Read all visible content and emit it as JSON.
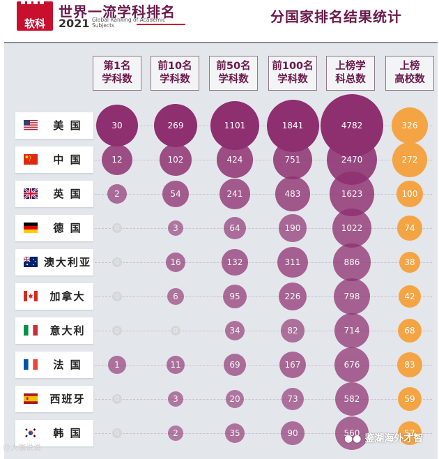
{
  "header": {
    "logo_text": "软科",
    "title": "世界一流学科排名",
    "year": "2021",
    "subtitle": "Global Ranking of Academic Subjects",
    "right_title": "分国家排名结果统计"
  },
  "colors": {
    "purple": "#8e2f70",
    "orange": "#f5a444",
    "zero": "#d4d6da",
    "header_text": "#6b1a4c"
  },
  "chart_data": {
    "type": "table",
    "columns": [
      "第1名\n学科数",
      "前10名\n学科数",
      "前50名\n学科数",
      "前100名\n学科数",
      "上榜学\n科总数",
      "上榜\n高校数"
    ],
    "rows": [
      {
        "country": "美 国",
        "flag": "us",
        "values": [
          30,
          269,
          1101,
          1841,
          4782,
          326
        ]
      },
      {
        "country": "中 国",
        "flag": "cn",
        "values": [
          12,
          102,
          424,
          751,
          2470,
          272
        ]
      },
      {
        "country": "英 国",
        "flag": "uk",
        "values": [
          2,
          54,
          241,
          483,
          1623,
          100
        ]
      },
      {
        "country": "德 国",
        "flag": "de",
        "values": [
          0,
          3,
          64,
          190,
          1022,
          74
        ]
      },
      {
        "country": "澳大利亚",
        "flag": "au",
        "values": [
          0,
          16,
          132,
          311,
          886,
          38
        ]
      },
      {
        "country": "加拿大",
        "flag": "ca",
        "values": [
          0,
          6,
          95,
          226,
          798,
          42
        ]
      },
      {
        "country": "意大利",
        "flag": "it",
        "values": [
          0,
          0,
          34,
          82,
          714,
          68
        ]
      },
      {
        "country": "法 国",
        "flag": "fr",
        "values": [
          1,
          11,
          69,
          167,
          676,
          83
        ]
      },
      {
        "country": "西班牙",
        "flag": "es",
        "values": [
          0,
          3,
          20,
          73,
          582,
          59
        ]
      },
      {
        "country": "韩 国",
        "flag": "kr",
        "values": [
          0,
          2,
          35,
          90,
          560,
          57
        ]
      }
    ]
  },
  "watermarks": {
    "left": "@大咖说说",
    "right": "鉴湖海外才智"
  }
}
